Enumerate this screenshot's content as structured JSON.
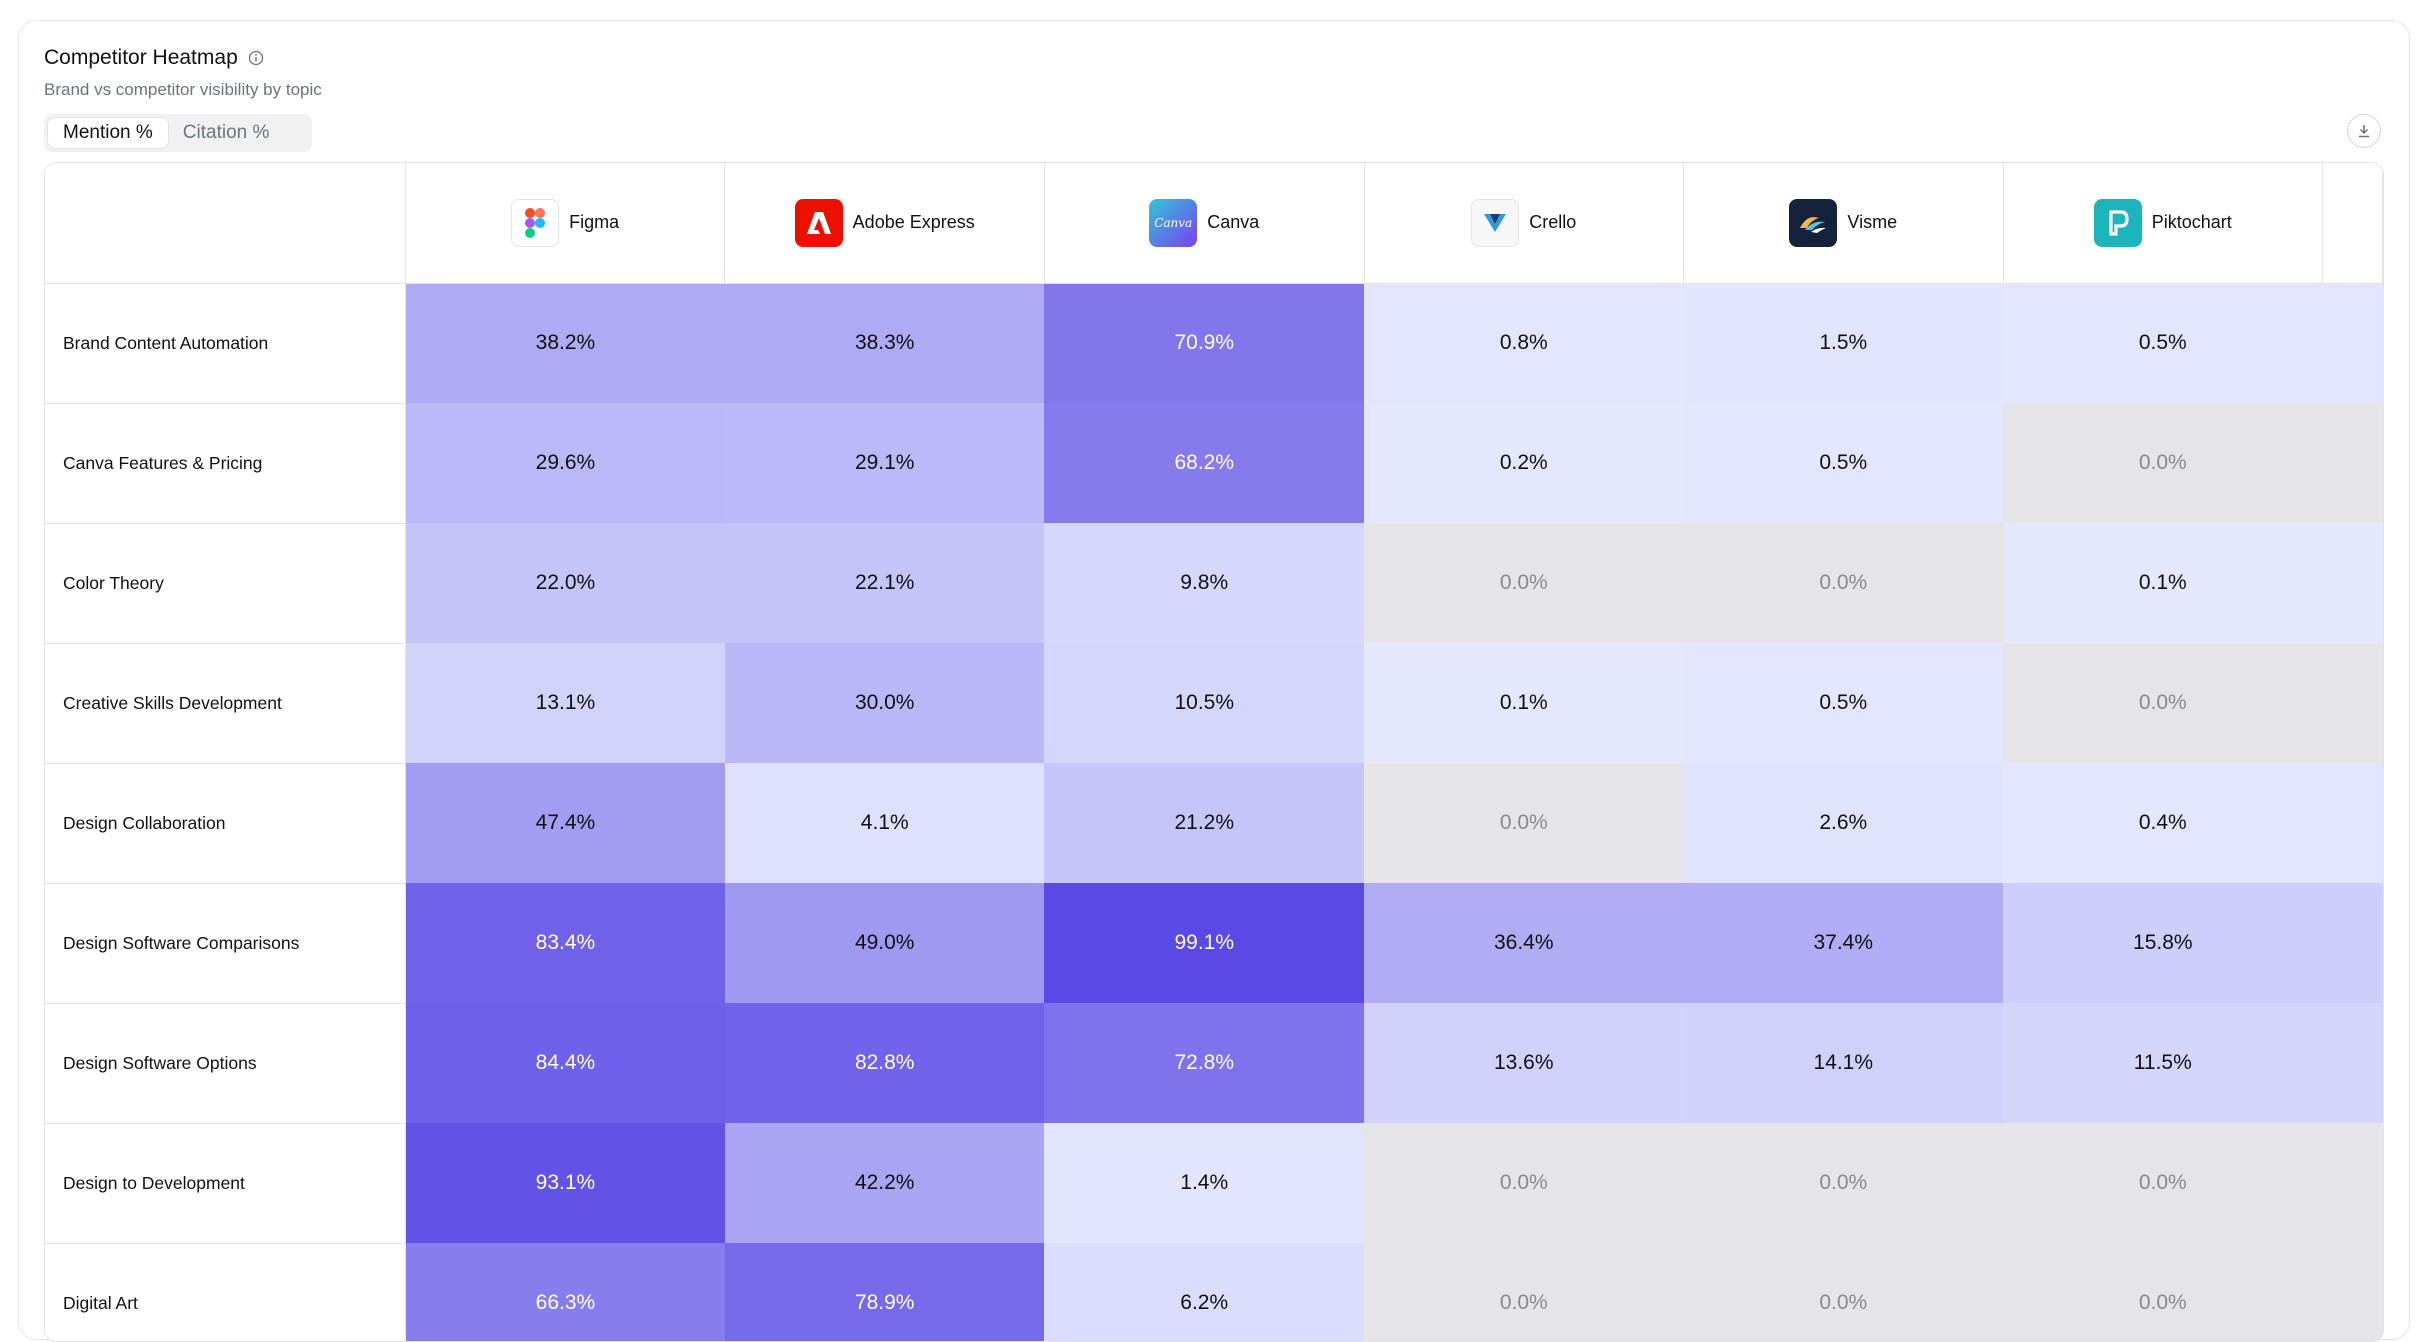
{
  "header": {
    "title": "Competitor Heatmap",
    "subtitle": "Brand vs competitor visibility by topic"
  },
  "toggle": {
    "options": [
      "Mention %",
      "Citation %"
    ],
    "active": "Mention %"
  },
  "icons": {
    "info": "info-icon",
    "download": "download-icon"
  },
  "competitors": [
    {
      "name": "Figma",
      "icon": "figma-logo-icon"
    },
    {
      "name": "Adobe Express",
      "icon": "adobe-express-logo-icon"
    },
    {
      "name": "Canva",
      "icon": "canva-logo-icon"
    },
    {
      "name": "Crello",
      "icon": "crello-logo-icon"
    },
    {
      "name": "Visme",
      "icon": "visme-logo-icon"
    },
    {
      "name": "Piktochart",
      "icon": "piktochart-logo-icon"
    }
  ],
  "rows": [
    {
      "topic": "Brand Content Automation",
      "values": [
        "38.2%",
        "38.3%",
        "70.9%",
        "0.8%",
        "1.5%",
        "0.5%"
      ]
    },
    {
      "topic": "Canva Features & Pricing",
      "values": [
        "29.6%",
        "29.1%",
        "68.2%",
        "0.2%",
        "0.5%",
        "0.0%"
      ]
    },
    {
      "topic": "Color Theory",
      "values": [
        "22.0%",
        "22.1%",
        "9.8%",
        "0.0%",
        "0.0%",
        "0.1%"
      ]
    },
    {
      "topic": "Creative Skills Development",
      "values": [
        "13.1%",
        "30.0%",
        "10.5%",
        "0.1%",
        "0.5%",
        "0.0%"
      ]
    },
    {
      "topic": "Design Collaboration",
      "values": [
        "47.4%",
        "4.1%",
        "21.2%",
        "0.0%",
        "2.6%",
        "0.4%"
      ]
    },
    {
      "topic": "Design Software Comparisons",
      "values": [
        "83.4%",
        "49.0%",
        "99.1%",
        "36.4%",
        "37.4%",
        "15.8%"
      ]
    },
    {
      "topic": "Design Software Options",
      "values": [
        "84.4%",
        "82.8%",
        "72.8%",
        "13.6%",
        "14.1%",
        "11.5%"
      ]
    },
    {
      "topic": "Design to Development",
      "values": [
        "93.1%",
        "42.2%",
        "1.4%",
        "0.0%",
        "0.0%",
        "0.0%"
      ]
    },
    {
      "topic": "Digital Art",
      "values": [
        "66.3%",
        "78.9%",
        "6.2%",
        "0.0%",
        "0.0%",
        "0.0%"
      ]
    }
  ],
  "colors": {
    "low": "#e4e7fe",
    "high": "#5848e5",
    "zero": "#e5e5e7"
  }
}
